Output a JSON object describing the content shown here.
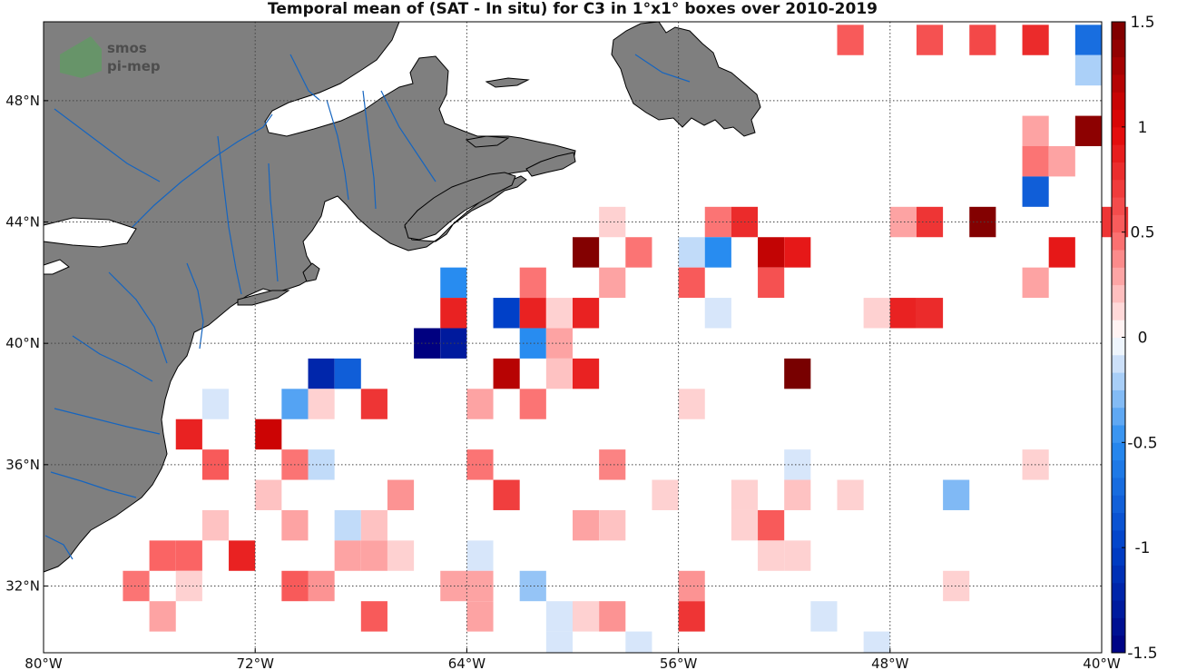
{
  "title": "Temporal mean of (SAT - In situ) for C3 in 1°x1° boxes over 2010-2019",
  "logo": {
    "line1": "smos",
    "line2": "pi-mep"
  },
  "colors": {
    "land": "#7f7f7f",
    "coast": "#000000",
    "river": "#1565c0",
    "grid": "#444444"
  },
  "chart_data": {
    "type": "heatmap",
    "title": "Temporal mean of (SAT - In situ) for C3 in 1°x1° boxes over 2010-2019",
    "xlim": [
      -80,
      -40
    ],
    "ylim": [
      29.8,
      50.6
    ],
    "x_ticks": [
      -80,
      -72,
      -64,
      -56,
      -48,
      -40
    ],
    "x_tick_labels": [
      "80°W",
      "72°W",
      "64°W",
      "56°W",
      "48°W",
      "40°W"
    ],
    "y_ticks": [
      32,
      36,
      40,
      44,
      48
    ],
    "y_tick_labels": [
      "32°N",
      "36°N",
      "40°N",
      "44°N",
      "48°N"
    ],
    "color_range": [
      -1.5,
      1.5
    ],
    "colorbar_ticks": [
      1.5,
      1,
      0.5,
      0,
      -0.5,
      -1,
      -1.5
    ],
    "colorbar_labels": [
      "1.5",
      "1",
      "0.5",
      "0",
      "-0.5",
      "-1",
      "-1.5"
    ],
    "cells": [
      {
        "lon": -50,
        "lat": 50,
        "v": 0.55
      },
      {
        "lon": -47,
        "lat": 50,
        "v": 0.6
      },
      {
        "lon": -45,
        "lat": 50,
        "v": 0.65
      },
      {
        "lon": -43,
        "lat": 50,
        "v": 0.8
      },
      {
        "lon": -41,
        "lat": 50,
        "v": -0.7
      },
      {
        "lon": -41,
        "lat": 49,
        "v": -0.2
      },
      {
        "lon": -43,
        "lat": 47,
        "v": 0.3
      },
      {
        "lon": -41,
        "lat": 47,
        "v": 1.4
      },
      {
        "lon": -43,
        "lat": 46,
        "v": 0.45
      },
      {
        "lon": -42,
        "lat": 46,
        "v": 0.3
      },
      {
        "lon": -43,
        "lat": 45,
        "v": -0.8
      },
      {
        "lon": -59,
        "lat": 44,
        "v": 0.15
      },
      {
        "lon": -55,
        "lat": 44,
        "v": 0.45
      },
      {
        "lon": -54,
        "lat": 44,
        "v": 0.8
      },
      {
        "lon": -48,
        "lat": 44,
        "v": 0.3
      },
      {
        "lon": -47,
        "lat": 44,
        "v": 0.75
      },
      {
        "lon": -45,
        "lat": 44,
        "v": 1.45
      },
      {
        "lon": -40,
        "lat": 44,
        "v": 0.75
      },
      {
        "lon": -60,
        "lat": 43,
        "v": 1.45
      },
      {
        "lon": -58,
        "lat": 43,
        "v": 0.45
      },
      {
        "lon": -56,
        "lat": 43,
        "v": -0.15
      },
      {
        "lon": -55,
        "lat": 43,
        "v": -0.5
      },
      {
        "lon": -53,
        "lat": 43,
        "v": 1.15
      },
      {
        "lon": -52,
        "lat": 43,
        "v": 0.9
      },
      {
        "lon": -42,
        "lat": 43,
        "v": 0.9
      },
      {
        "lon": -65,
        "lat": 42,
        "v": -0.5
      },
      {
        "lon": -62,
        "lat": 42,
        "v": 0.45
      },
      {
        "lon": -59,
        "lat": 42,
        "v": 0.3
      },
      {
        "lon": -56,
        "lat": 42,
        "v": 0.55
      },
      {
        "lon": -53,
        "lat": 42,
        "v": 0.6
      },
      {
        "lon": -43,
        "lat": 42,
        "v": 0.3
      },
      {
        "lon": -65,
        "lat": 41,
        "v": 0.85
      },
      {
        "lon": -63,
        "lat": 41,
        "v": -1.0
      },
      {
        "lon": -62,
        "lat": 41,
        "v": 0.85
      },
      {
        "lon": -61,
        "lat": 41,
        "v": 0.15
      },
      {
        "lon": -60,
        "lat": 41,
        "v": 0.85
      },
      {
        "lon": -55,
        "lat": 41,
        "v": -0.1
      },
      {
        "lon": -49,
        "lat": 41,
        "v": 0.15
      },
      {
        "lon": -48,
        "lat": 41,
        "v": 0.85
      },
      {
        "lon": -47,
        "lat": 41,
        "v": 0.8
      },
      {
        "lon": -66,
        "lat": 40,
        "v": -1.5
      },
      {
        "lon": -65,
        "lat": 40,
        "v": -1.3
      },
      {
        "lon": -62,
        "lat": 40,
        "v": -0.5
      },
      {
        "lon": -61,
        "lat": 40,
        "v": 0.3
      },
      {
        "lon": -70,
        "lat": 39,
        "v": -1.2
      },
      {
        "lon": -69,
        "lat": 39,
        "v": -0.8
      },
      {
        "lon": -63,
        "lat": 39,
        "v": 1.2
      },
      {
        "lon": -61,
        "lat": 39,
        "v": 0.2
      },
      {
        "lon": -60,
        "lat": 39,
        "v": 0.85
      },
      {
        "lon": -52,
        "lat": 39,
        "v": 1.5
      },
      {
        "lon": -74,
        "lat": 38,
        "v": -0.1
      },
      {
        "lon": -71,
        "lat": 38,
        "v": -0.4
      },
      {
        "lon": -70,
        "lat": 38,
        "v": 0.15
      },
      {
        "lon": -68,
        "lat": 38,
        "v": 0.75
      },
      {
        "lon": -64,
        "lat": 38,
        "v": 0.3
      },
      {
        "lon": -62,
        "lat": 38,
        "v": 0.45
      },
      {
        "lon": -56,
        "lat": 38,
        "v": 0.15
      },
      {
        "lon": -75,
        "lat": 37,
        "v": 0.85
      },
      {
        "lon": -72,
        "lat": 37,
        "v": 1.1
      },
      {
        "lon": -74,
        "lat": 36,
        "v": 0.55
      },
      {
        "lon": -71,
        "lat": 36,
        "v": 0.45
      },
      {
        "lon": -70,
        "lat": 36,
        "v": -0.15
      },
      {
        "lon": -64,
        "lat": 36,
        "v": 0.45
      },
      {
        "lon": -59,
        "lat": 36,
        "v": 0.4
      },
      {
        "lon": -52,
        "lat": 36,
        "v": -0.1
      },
      {
        "lon": -43,
        "lat": 36,
        "v": 0.15
      },
      {
        "lon": -72,
        "lat": 35,
        "v": 0.2
      },
      {
        "lon": -67,
        "lat": 35,
        "v": 0.35
      },
      {
        "lon": -63,
        "lat": 35,
        "v": 0.7
      },
      {
        "lon": -57,
        "lat": 35,
        "v": 0.15
      },
      {
        "lon": -54,
        "lat": 35,
        "v": 0.15
      },
      {
        "lon": -52,
        "lat": 35,
        "v": 0.2
      },
      {
        "lon": -50,
        "lat": 35,
        "v": 0.15
      },
      {
        "lon": -46,
        "lat": 35,
        "v": -0.3
      },
      {
        "lon": -74,
        "lat": 34,
        "v": 0.2
      },
      {
        "lon": -71,
        "lat": 34,
        "v": 0.3
      },
      {
        "lon": -69,
        "lat": 34,
        "v": -0.15
      },
      {
        "lon": -68,
        "lat": 34,
        "v": 0.2
      },
      {
        "lon": -60,
        "lat": 34,
        "v": 0.3
      },
      {
        "lon": -59,
        "lat": 34,
        "v": 0.2
      },
      {
        "lon": -54,
        "lat": 34,
        "v": 0.15
      },
      {
        "lon": -53,
        "lat": 34,
        "v": 0.55
      },
      {
        "lon": -76,
        "lat": 33,
        "v": 0.5
      },
      {
        "lon": -75,
        "lat": 33,
        "v": 0.5
      },
      {
        "lon": -73,
        "lat": 33,
        "v": 0.85
      },
      {
        "lon": -69,
        "lat": 33,
        "v": 0.3
      },
      {
        "lon": -68,
        "lat": 33,
        "v": 0.3
      },
      {
        "lon": -67,
        "lat": 33,
        "v": 0.15
      },
      {
        "lon": -64,
        "lat": 33,
        "v": -0.1
      },
      {
        "lon": -53,
        "lat": 33,
        "v": 0.15
      },
      {
        "lon": -52,
        "lat": 33,
        "v": 0.15
      },
      {
        "lon": -77,
        "lat": 32,
        "v": 0.45
      },
      {
        "lon": -75,
        "lat": 32,
        "v": 0.15
      },
      {
        "lon": -71,
        "lat": 32,
        "v": 0.55
      },
      {
        "lon": -70,
        "lat": 32,
        "v": 0.35
      },
      {
        "lon": -65,
        "lat": 32,
        "v": 0.3
      },
      {
        "lon": -64,
        "lat": 32,
        "v": 0.3
      },
      {
        "lon": -62,
        "lat": 32,
        "v": -0.25
      },
      {
        "lon": -56,
        "lat": 32,
        "v": 0.35
      },
      {
        "lon": -46,
        "lat": 32,
        "v": 0.15
      },
      {
        "lon": -76,
        "lat": 31,
        "v": 0.3
      },
      {
        "lon": -68,
        "lat": 31,
        "v": 0.55
      },
      {
        "lon": -64,
        "lat": 31,
        "v": 0.3
      },
      {
        "lon": -61,
        "lat": 31,
        "v": -0.1
      },
      {
        "lon": -60,
        "lat": 31,
        "v": 0.15
      },
      {
        "lon": -59,
        "lat": 31,
        "v": 0.35
      },
      {
        "lon": -56,
        "lat": 31,
        "v": 0.75
      },
      {
        "lon": -51,
        "lat": 31,
        "v": -0.1
      },
      {
        "lon": -61,
        "lat": 30,
        "v": -0.1
      },
      {
        "lon": -58,
        "lat": 30,
        "v": -0.1
      },
      {
        "lon": -49,
        "lat": 30,
        "v": -0.1
      }
    ]
  }
}
